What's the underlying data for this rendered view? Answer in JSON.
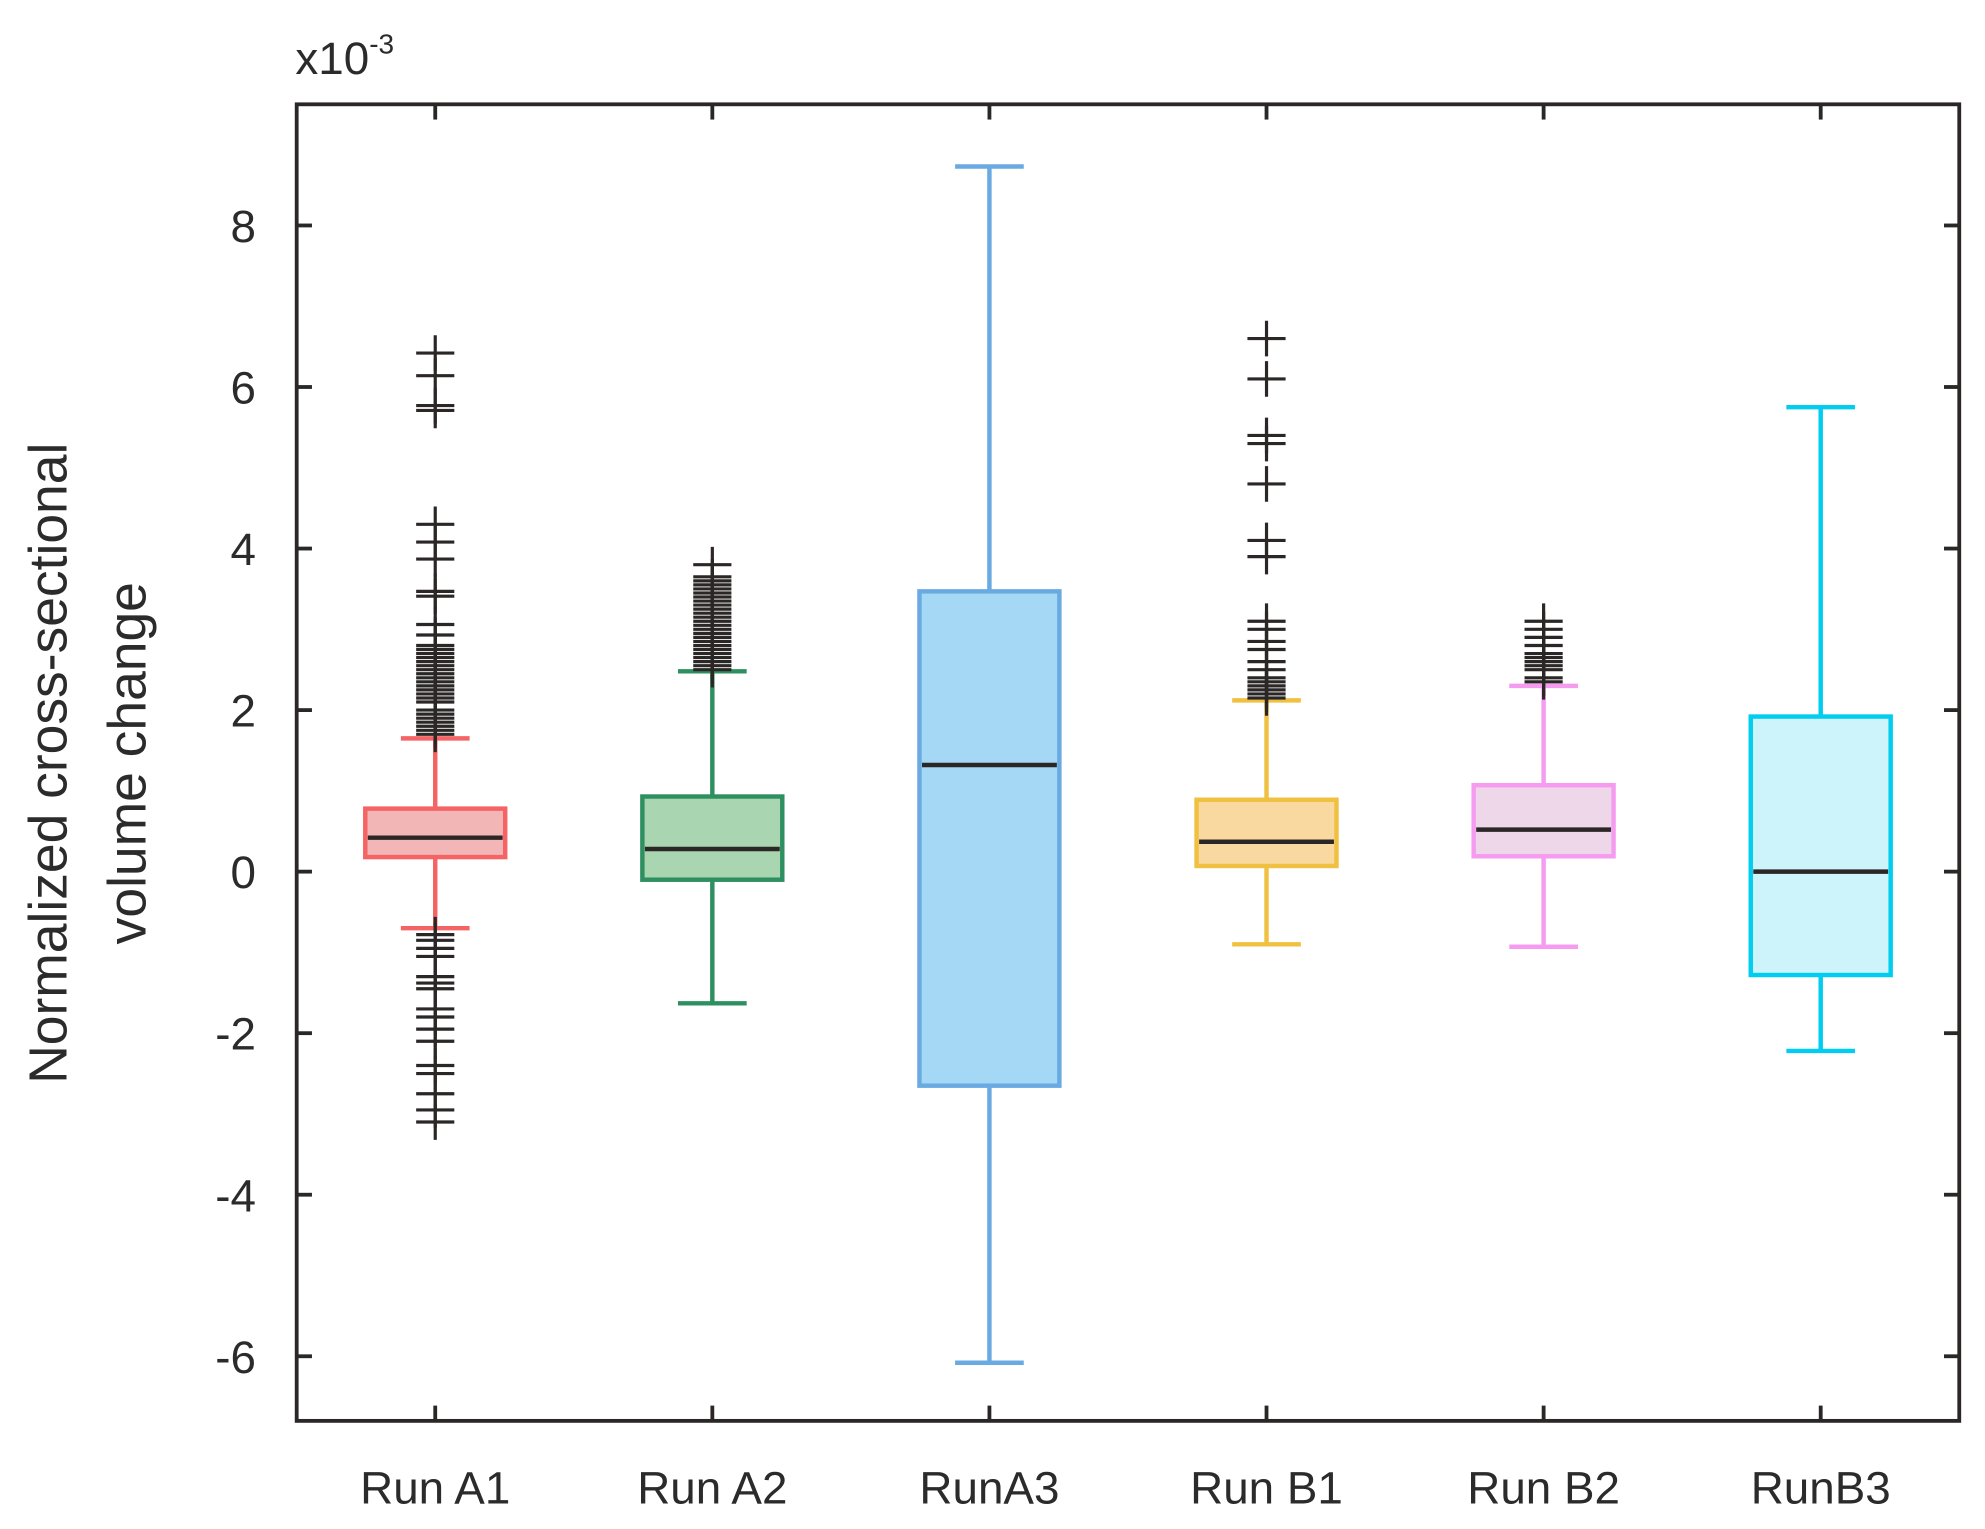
{
  "chart_data": {
    "type": "box",
    "title": "",
    "xlabel": "",
    "ylabel": [
      "Normalized cross-sectional",
      "volume change"
    ],
    "y_multiplier_base": "x10",
    "y_multiplier_exp": "-3",
    "ylim": [
      -6.8,
      9.5
    ],
    "yticks": [
      -6,
      -4,
      -2,
      0,
      2,
      4,
      6,
      8
    ],
    "grid": false,
    "categories": [
      "Run A1",
      "Run A2",
      "RunA3",
      "Run B1",
      "Run B2",
      "RunB3"
    ],
    "series": [
      {
        "name": "Run A1",
        "color": "#f46464",
        "fill": "#f2b6b6",
        "whisker_high": 1.65,
        "q3": 0.78,
        "median": 0.42,
        "q1": 0.18,
        "whisker_low": -0.7,
        "outliers": [
          6.42,
          6.14,
          5.77,
          5.71,
          4.3,
          4.08,
          3.87,
          3.47,
          3.41,
          3.06,
          2.93,
          2.8,
          2.75,
          2.7,
          2.65,
          2.6,
          2.55,
          2.5,
          2.45,
          2.4,
          2.35,
          2.3,
          2.25,
          2.2,
          2.15,
          2.1,
          2.0,
          1.95,
          1.9,
          1.85,
          1.8,
          1.75,
          1.7,
          -0.78,
          -0.85,
          -0.95,
          -1.05,
          -1.3,
          -1.38,
          -1.45,
          -1.7,
          -1.8,
          -1.95,
          -2.1,
          -2.4,
          -2.5,
          -2.75,
          -2.95,
          -3.1
        ]
      },
      {
        "name": "Run A2",
        "color": "#2e9060",
        "fill": "#a9d6b0",
        "whisker_high": 2.48,
        "q3": 0.93,
        "median": 0.28,
        "q1": -0.1,
        "whisker_low": -1.63,
        "outliers": [
          2.5,
          2.55,
          2.6,
          2.65,
          2.7,
          2.75,
          2.8,
          2.85,
          2.9,
          2.95,
          3.0,
          3.05,
          3.1,
          3.15,
          3.2,
          3.25,
          3.3,
          3.35,
          3.4,
          3.45,
          3.5,
          3.55,
          3.6,
          3.65,
          3.8
        ]
      },
      {
        "name": "RunA3",
        "color": "#6aaae2",
        "fill": "#a5d8f5",
        "whisker_high": 8.73,
        "q3": 3.47,
        "median": 1.32,
        "q1": -2.65,
        "whisker_low": -6.08,
        "outliers": []
      },
      {
        "name": "Run B1",
        "color": "#f0c040",
        "fill": "#f9d9a0",
        "whisker_high": 2.12,
        "q3": 0.89,
        "median": 0.37,
        "q1": 0.07,
        "whisker_low": -0.9,
        "outliers": [
          2.15,
          2.2,
          2.25,
          2.3,
          2.35,
          2.4,
          2.5,
          2.6,
          2.75,
          2.85,
          3.0,
          3.1,
          3.9,
          4.1,
          4.8,
          5.3,
          5.4,
          6.1,
          6.6
        ]
      },
      {
        "name": "Run B2",
        "color": "#f59cf0",
        "fill": "#efd7ea",
        "whisker_high": 2.3,
        "q3": 1.07,
        "median": 0.52,
        "q1": 0.19,
        "whisker_low": -0.93,
        "outliers": [
          2.35,
          2.4,
          2.5,
          2.55,
          2.6,
          2.65,
          2.7,
          2.8,
          2.9,
          3.0,
          3.1
        ]
      },
      {
        "name": "RunB3",
        "color": "#00cdf0",
        "fill": "#cef4fb",
        "whisker_high": 5.75,
        "q3": 1.92,
        "median": 0.0,
        "q1": -1.28,
        "whisker_low": -2.22,
        "outliers": []
      }
    ]
  }
}
